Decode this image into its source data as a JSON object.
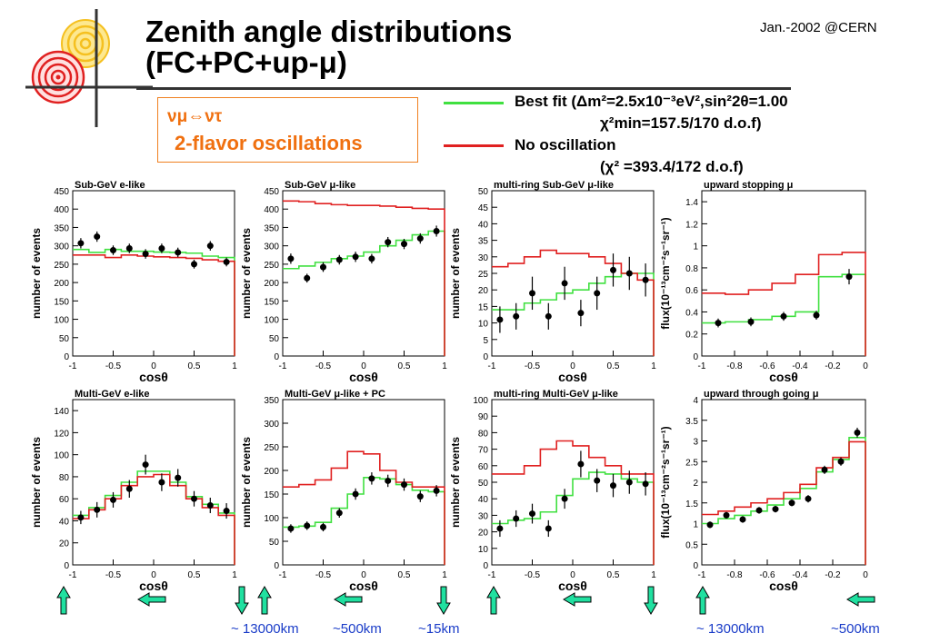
{
  "header": {
    "title_line1": "Zenith angle distributions",
    "title_line2": "(FC+PC+up-μ)",
    "date": "Jan.-2002 @CERN"
  },
  "oscillation_box": {
    "line1": "νμ⇔ντ",
    "line2": "2-flavor oscillations"
  },
  "legend": {
    "best_fit_label": "Best fit (Δm²=2.5x10⁻³eV²,sin²2θ=1.00",
    "best_fit_chi2": "χ²min=157.5/170 d.o.f)",
    "best_fit_color": "#40e040",
    "no_osc_label": "No oscillation",
    "no_osc_chi2": "(χ²   =393.4/172 d.o.f)",
    "no_osc_color": "#e02020"
  },
  "colors": {
    "arrow_fill": "#20e0a0",
    "distance_text": "#1a3cc8",
    "orange": "#f07010"
  },
  "distances": {
    "d1": "~ 13000km",
    "d2": "~500km",
    "d3": "~15km",
    "d4": "~ 13000km",
    "d5": "~500km"
  },
  "chart_data": [
    {
      "type": "line",
      "title": "Sub-GeV e-like",
      "xlabel": "cosθ",
      "ylabel": "number of events",
      "xlim": [
        -1,
        1
      ],
      "ylim": [
        0,
        450
      ],
      "xticks": [
        "-1",
        "-0.5",
        "0",
        "0.5",
        "1"
      ],
      "yticks": [
        "0",
        "50",
        "100",
        "150",
        "200",
        "250",
        "300",
        "350",
        "400",
        "450"
      ],
      "series": [
        {
          "name": "Best fit",
          "type": "step",
          "color": "#40e040",
          "values": [
            290,
            282,
            290,
            285,
            285,
            283,
            282,
            280,
            272,
            268
          ]
        },
        {
          "name": "No oscillation",
          "type": "step",
          "color": "#e02020",
          "values": [
            275,
            275,
            268,
            275,
            272,
            270,
            268,
            266,
            262,
            258
          ]
        }
      ],
      "points": {
        "x": [
          -0.9,
          -0.7,
          -0.5,
          -0.3,
          -0.1,
          0.1,
          0.3,
          0.5,
          0.7,
          0.9
        ],
        "y": [
          307,
          325,
          288,
          293,
          278,
          293,
          282,
          250,
          300,
          256
        ],
        "err": [
          14,
          14,
          13,
          13,
          13,
          13,
          13,
          12,
          13,
          12
        ]
      }
    },
    {
      "type": "line",
      "title": "Sub-GeV μ-like",
      "xlabel": "cosθ",
      "ylabel": "number of events",
      "xlim": [
        -1,
        1
      ],
      "ylim": [
        0,
        450
      ],
      "xticks": [
        "-1",
        "-0.5",
        "0",
        "0.5",
        "1"
      ],
      "yticks": [
        "0",
        "50",
        "100",
        "150",
        "200",
        "250",
        "300",
        "350",
        "400",
        "450"
      ],
      "series": [
        {
          "name": "Best fit",
          "type": "step",
          "color": "#40e040",
          "values": [
            238,
            245,
            255,
            265,
            272,
            283,
            300,
            315,
            330,
            340
          ]
        },
        {
          "name": "No oscillation",
          "type": "step",
          "color": "#e02020",
          "values": [
            422,
            420,
            415,
            412,
            410,
            410,
            408,
            405,
            402,
            400
          ]
        }
      ],
      "points": {
        "x": [
          -0.9,
          -0.7,
          -0.5,
          -0.3,
          -0.1,
          0.1,
          0.3,
          0.5,
          0.7,
          0.9
        ],
        "y": [
          265,
          212,
          242,
          262,
          270,
          265,
          310,
          305,
          320,
          340
        ],
        "err": [
          14,
          12,
          13,
          13,
          14,
          13,
          14,
          14,
          14,
          15
        ]
      }
    },
    {
      "type": "line",
      "title": "multi-ring Sub-GeV μ-like",
      "xlabel": "cosθ",
      "ylabel": "number of events",
      "xlim": [
        -1,
        1
      ],
      "ylim": [
        0,
        50
      ],
      "xticks": [
        "-1",
        "-0.5",
        "0",
        "0.5",
        "1"
      ],
      "yticks": [
        "0",
        "5",
        "10",
        "15",
        "20",
        "25",
        "30",
        "35",
        "40",
        "45",
        "50"
      ],
      "series": [
        {
          "name": "Best fit",
          "type": "step",
          "color": "#40e040",
          "values": [
            14,
            14,
            16,
            17,
            19,
            20,
            22,
            24,
            25,
            25
          ]
        },
        {
          "name": "No oscillation",
          "type": "step",
          "color": "#e02020",
          "values": [
            27,
            28,
            30,
            32,
            31,
            31,
            30,
            28,
            25,
            23
          ]
        }
      ],
      "points": {
        "x": [
          -0.9,
          -0.7,
          -0.5,
          -0.3,
          -0.1,
          0.1,
          0.3,
          0.5,
          0.7,
          0.9
        ],
        "y": [
          11,
          12,
          19,
          12,
          22,
          13,
          19,
          26,
          25,
          23
        ],
        "err": [
          4,
          4,
          5,
          4,
          5,
          4,
          5,
          5,
          5,
          5
        ]
      }
    },
    {
      "type": "line",
      "title": "upward stopping μ",
      "xlabel": "cosθ",
      "ylabel": "flux(10⁻¹³cm⁻²s⁻¹sr⁻¹)",
      "xlim": [
        -1,
        0
      ],
      "ylim": [
        0,
        1.5
      ],
      "xticks": [
        "-1",
        "-0.8",
        "-0.6",
        "-0.4",
        "-0.2",
        "0"
      ],
      "yticks": [
        "0",
        "0.2",
        "0.4",
        "0.6",
        "0.8",
        "1",
        "1.2",
        "1.4"
      ],
      "series": [
        {
          "name": "Best fit",
          "type": "step",
          "color": "#40e040",
          "values": [
            0.3,
            0.31,
            0.33,
            0.36,
            0.4,
            0.72,
            0.74
          ]
        },
        {
          "name": "No oscillation",
          "type": "step",
          "color": "#e02020",
          "values": [
            0.57,
            0.56,
            0.6,
            0.66,
            0.74,
            0.92,
            0.94
          ]
        }
      ],
      "points": {
        "x": [
          -0.9,
          -0.7,
          -0.5,
          -0.3,
          -0.1
        ],
        "y": [
          0.3,
          0.31,
          0.36,
          0.37,
          0.72
        ],
        "err": [
          0.04,
          0.04,
          0.04,
          0.04,
          0.07
        ]
      }
    },
    {
      "type": "line",
      "title": "Multi-GeV e-like",
      "xlabel": "cosθ",
      "ylabel": "number of events",
      "xlim": [
        -1,
        1
      ],
      "ylim": [
        0,
        150
      ],
      "xticks": [
        "-1",
        "-0.5",
        "0",
        "0.5",
        "1"
      ],
      "yticks": [
        "0",
        "20",
        "40",
        "60",
        "80",
        "100",
        "120",
        "140"
      ],
      "series": [
        {
          "name": "Best fit",
          "type": "step",
          "color": "#40e040",
          "values": [
            45,
            52,
            63,
            75,
            85,
            85,
            75,
            62,
            55,
            47
          ]
        },
        {
          "name": "No oscillation",
          "type": "step",
          "color": "#e02020",
          "values": [
            42,
            50,
            60,
            72,
            80,
            82,
            72,
            60,
            52,
            45
          ]
        }
      ],
      "points": {
        "x": [
          -0.9,
          -0.7,
          -0.5,
          -0.3,
          -0.1,
          0.1,
          0.3,
          0.5,
          0.7,
          0.9
        ],
        "y": [
          43,
          50,
          59,
          69,
          91,
          75,
          79,
          60,
          54,
          49
        ],
        "err": [
          6,
          7,
          7,
          8,
          9,
          8,
          8,
          7,
          7,
          7
        ]
      }
    },
    {
      "type": "line",
      "title": "Multi-GeV μ-like + PC",
      "xlabel": "cosθ",
      "ylabel": "number of events",
      "xlim": [
        -1,
        1
      ],
      "ylim": [
        0,
        350
      ],
      "xticks": [
        "-1",
        "-0.5",
        "0",
        "0.5",
        "1"
      ],
      "yticks": [
        "0",
        "50",
        "100",
        "150",
        "200",
        "250",
        "300",
        "350"
      ],
      "series": [
        {
          "name": "Best fit",
          "type": "step",
          "color": "#40e040",
          "values": [
            80,
            82,
            90,
            120,
            150,
            185,
            182,
            170,
            158,
            155
          ]
        },
        {
          "name": "No oscillation",
          "type": "step",
          "color": "#e02020",
          "values": [
            165,
            170,
            180,
            205,
            240,
            235,
            200,
            175,
            165,
            165
          ]
        }
      ],
      "points": {
        "x": [
          -0.9,
          -0.7,
          -0.5,
          -0.3,
          -0.1,
          0.1,
          0.3,
          0.5,
          0.7,
          0.9
        ],
        "y": [
          77,
          83,
          80,
          110,
          150,
          183,
          178,
          170,
          145,
          157
        ],
        "err": [
          9,
          9,
          9,
          10,
          12,
          13,
          13,
          13,
          12,
          12
        ]
      }
    },
    {
      "type": "line",
      "title": "multi-ring Multi-GeV μ-like",
      "xlabel": "cosθ",
      "ylabel": "number of events",
      "xlim": [
        -1,
        1
      ],
      "ylim": [
        0,
        100
      ],
      "xticks": [
        "-1",
        "-0.5",
        "0",
        "0.5",
        "1"
      ],
      "yticks": [
        "0",
        "10",
        "20",
        "30",
        "40",
        "50",
        "60",
        "70",
        "80",
        "90",
        "100"
      ],
      "series": [
        {
          "name": "Best fit",
          "type": "step",
          "color": "#40e040",
          "values": [
            25,
            27,
            28,
            32,
            42,
            52,
            56,
            55,
            52,
            50
          ]
        },
        {
          "name": "No oscillation",
          "type": "step",
          "color": "#e02020",
          "values": [
            55,
            55,
            60,
            70,
            75,
            72,
            65,
            60,
            55,
            55
          ]
        }
      ],
      "points": {
        "x": [
          -0.9,
          -0.7,
          -0.5,
          -0.3,
          -0.1,
          0.1,
          0.3,
          0.5,
          0.7,
          0.9
        ],
        "y": [
          22,
          28,
          31,
          22,
          40,
          61,
          51,
          48,
          50,
          49
        ],
        "err": [
          5,
          5,
          6,
          5,
          6,
          8,
          7,
          7,
          7,
          7
        ]
      }
    },
    {
      "type": "line",
      "title": "upward through going μ",
      "xlabel": "cosθ",
      "ylabel": "flux(10⁻¹³cm⁻²s⁻¹sr⁻¹)",
      "xlim": [
        -1,
        0
      ],
      "ylim": [
        0,
        4
      ],
      "xticks": [
        "-1",
        "-0.8",
        "-0.6",
        "-0.4",
        "-0.2",
        "0"
      ],
      "yticks": [
        "0",
        "0.5",
        "1",
        "1.5",
        "2",
        "2.5",
        "3",
        "3.5",
        "4"
      ],
      "series": [
        {
          "name": "Best fit",
          "type": "step",
          "color": "#40e040",
          "values": [
            1.0,
            1.12,
            1.2,
            1.3,
            1.45,
            1.6,
            1.85,
            2.25,
            2.55,
            3.08
          ]
        },
        {
          "name": "No oscillation",
          "type": "step",
          "color": "#e02020",
          "values": [
            1.22,
            1.3,
            1.4,
            1.5,
            1.6,
            1.75,
            1.95,
            2.35,
            2.6,
            2.98
          ]
        }
      ],
      "points": {
        "x": [
          -0.95,
          -0.85,
          -0.75,
          -0.65,
          -0.55,
          -0.45,
          -0.35,
          -0.25,
          -0.15,
          -0.05
        ],
        "y": [
          0.97,
          1.2,
          1.1,
          1.32,
          1.35,
          1.5,
          1.6,
          2.3,
          2.5,
          3.2
        ],
        "err": [
          0.08,
          0.08,
          0.08,
          0.08,
          0.08,
          0.08,
          0.09,
          0.1,
          0.1,
          0.12
        ]
      }
    }
  ]
}
